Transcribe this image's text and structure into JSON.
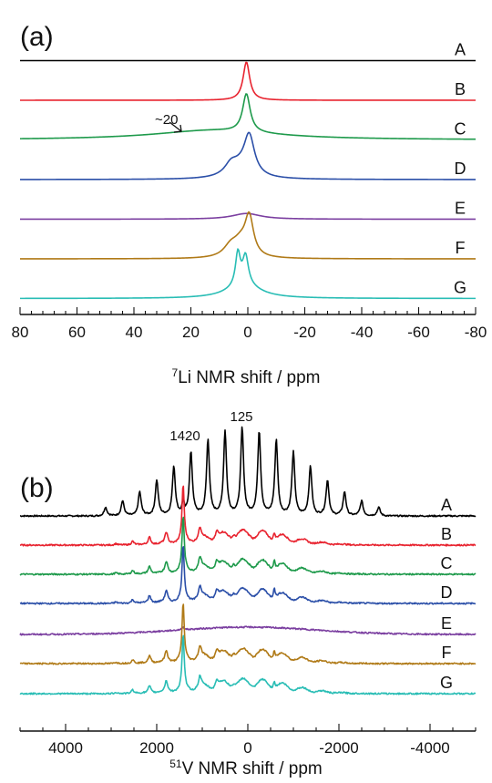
{
  "chart_data": [
    {
      "type": "line",
      "panel_label": "(a)",
      "x_axis": {
        "nucleus_sup": "7",
        "label": "Li NMR shift / ppm",
        "range": [
          80,
          -80
        ],
        "reversed": true,
        "ticks": [
          80,
          60,
          40,
          20,
          0,
          -20,
          -40,
          -60,
          -80
        ],
        "tick_labels": [
          "80",
          "60",
          "40",
          "20",
          "0",
          "-20",
          "-40",
          "-60",
          "-80"
        ]
      },
      "annotations": [
        {
          "text": "~20",
          "x": 20
        }
      ],
      "series": [
        {
          "name": "A",
          "color": "#000000",
          "peaks": []
        },
        {
          "name": "B",
          "color": "#e8232f",
          "peaks": [
            {
              "center": 0.5,
              "height": 1.0,
              "width": 1.4
            }
          ]
        },
        {
          "name": "C",
          "color": "#1e9a4b",
          "peaks": [
            {
              "center": 0.5,
              "height": 1.0,
              "width": 1.6
            },
            {
              "center": 12,
              "height": 0.25,
              "width": 26
            }
          ]
        },
        {
          "name": "D",
          "color": "#2b4fa8",
          "peaks": [
            {
              "center": -0.5,
              "height": 1.0,
              "width": 2.2
            },
            {
              "center": 6,
              "height": 0.22,
              "width": 2.5
            },
            {
              "center": 3,
              "height": 0.3,
              "width": 5
            }
          ]
        },
        {
          "name": "E",
          "color": "#7b3fa0",
          "peaks": [
            {
              "center": 0.5,
              "height": 0.15,
              "width": 6
            }
          ]
        },
        {
          "name": "F",
          "color": "#b07a17",
          "peaks": [
            {
              "center": -0.5,
              "height": 1.0,
              "width": 1.8
            },
            {
              "center": 6,
              "height": 0.28,
              "width": 3
            },
            {
              "center": 2.5,
              "height": 0.35,
              "width": 3
            }
          ]
        },
        {
          "name": "G",
          "color": "#29bdb5",
          "peaks": [
            {
              "center": 3.5,
              "height": 0.85,
              "width": 1.0
            },
            {
              "center": 0.8,
              "height": 0.75,
              "width": 1.2
            },
            {
              "center": 1.5,
              "height": 0.35,
              "width": 7
            }
          ]
        }
      ]
    },
    {
      "type": "line",
      "panel_label": "(b)",
      "x_axis": {
        "nucleus_sup": "51",
        "label": "V NMR shift / ppm",
        "range": [
          5000,
          -5000
        ],
        "reversed": true,
        "ticks": [
          4000,
          2000,
          0,
          -2000,
          -4000
        ],
        "tick_labels": [
          "4000",
          "2000",
          "0",
          "-2000",
          "-4000"
        ]
      },
      "annotations": [
        {
          "text": "1420",
          "x": 1420
        },
        {
          "text": "125",
          "x": 125
        }
      ],
      "series": [
        {
          "name": "A",
          "color": "#000000"
        },
        {
          "name": "B",
          "color": "#e8232f"
        },
        {
          "name": "C",
          "color": "#1e9a4b"
        },
        {
          "name": "D",
          "color": "#2b4fa8"
        },
        {
          "name": "E",
          "color": "#7b3fa0"
        },
        {
          "name": "F",
          "color": "#b07a17"
        },
        {
          "name": "G",
          "color": "#29bdb5"
        }
      ]
    }
  ]
}
